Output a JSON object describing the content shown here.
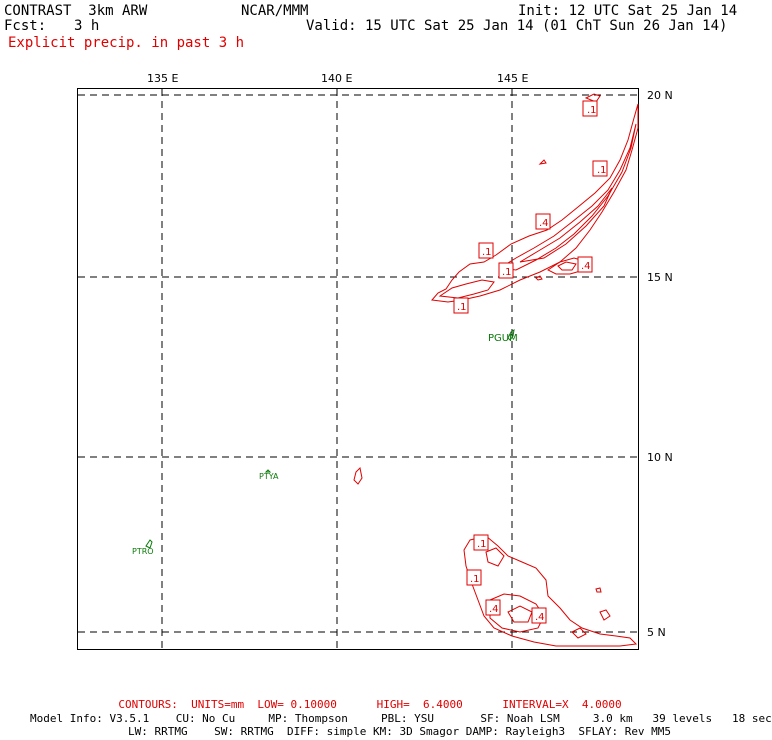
{
  "header": {
    "model": "CONTRAST  3km ARW",
    "fcst_label": "Fcst:",
    "fcst_value": "3 h",
    "producer": "NCAR/MMM",
    "init": "Init: 12 UTC Sat 25 Jan 14",
    "valid": "Valid: 15 UTC Sat 25 Jan 14 (01 ChT Sun 26 Jan 14)",
    "field": "Explicit precip. in past 3 h"
  },
  "axes": {
    "lon_labels": [
      "135 E",
      "140 E",
      "145 E"
    ],
    "lat_labels": [
      "20 N",
      "15 N",
      "10 N",
      "5 N"
    ]
  },
  "stations": [
    "PGUM",
    "PTYA",
    "PTRO"
  ],
  "contour_labels": [
    ".1",
    ".1",
    ".4",
    ".1",
    ".4",
    ".1",
    ".1",
    ".1",
    ".1",
    ".4",
    ".4"
  ],
  "footer": {
    "contours": "CONTOURS:  UNITS=mm  LOW= 0.10000      HIGH=  6.4000      INTERVAL=X  4.0000",
    "model_info_1": "Model Info: V3.5.1    CU: No Cu     MP: Thompson     PBL: YSU       SF: Noah LSM     3.0 km   39 levels   18 sec",
    "model_info_2": "LW: RRTMG    SW: RRTMG  DIFF: simple KM: 3D Smagor DAMP: Rayleigh3  SFLAY: Rev MM5"
  },
  "colors": {
    "precip_contour": "#e00000",
    "coastline": "#0a7a0a",
    "grid": "#000000"
  }
}
